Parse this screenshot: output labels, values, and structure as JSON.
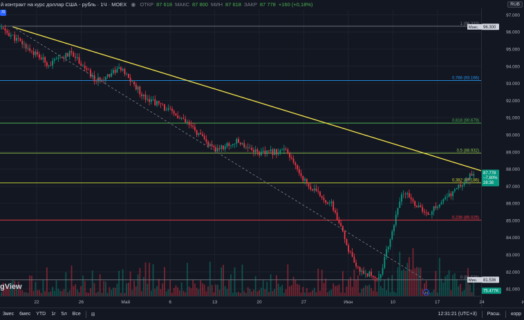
{
  "header": {
    "symbol": "й контракт на курс доллар США - рубль · 1Ч · MOEX",
    "open_label": "ОТКР",
    "open": "87 618",
    "high_label": "МАКС",
    "high": "87 800",
    "low_label": "МИН",
    "low": "87 618",
    "close_label": "ЗАКР",
    "close": "87 778",
    "change": "+160 (+0,18%)",
    "badge": "70",
    "currency": "RUB"
  },
  "watermark": "gView",
  "bottom_bar": {
    "ranges": [
      "3мес",
      "6мес",
      "YTD",
      "1г",
      "5л",
      "Все"
    ],
    "time": "12:31:21 (UTC+3)",
    "scale": "Расш.",
    "mode": "корр"
  },
  "chart_data": {
    "type": "candlestick",
    "y_axis": {
      "ticks": [
        "97.000",
        "96.000",
        "95.000",
        "94.000",
        "93.000",
        "92.000",
        "91.000",
        "90.000",
        "89.000",
        "88.000",
        "87.000",
        "86.000",
        "85.000",
        "84.000",
        "83.000",
        "82.000",
        "81.000"
      ],
      "range": [
        80.6,
        97.3
      ]
    },
    "x_axis": {
      "ticks": [
        "22",
        "26",
        "Май",
        "6",
        "13",
        "20",
        "27",
        "Июн",
        "10",
        "17",
        "24",
        "Июл"
      ]
    },
    "price_path": [
      96.2,
      95.2,
      94.1,
      94.8,
      93.1,
      93.9,
      92.3,
      91.5,
      90.5,
      89.1,
      89.6,
      88.9,
      89.1,
      87.0,
      85.9,
      82.2,
      81.6,
      86.7,
      85.3,
      86.5,
      87.78
    ],
    "fibonacci": [
      {
        "level": "1",
        "price": 96.333,
        "label": "1 (96.333)",
        "color": "#787b86"
      },
      {
        "level": "0.786",
        "price": 93.166,
        "label": "0,786 (93.166)",
        "color": "#2196f3"
      },
      {
        "level": "0.618",
        "price": 90.679,
        "label": "0,618 (90.679)",
        "color": "#4caf50"
      },
      {
        "level": "0.5",
        "price": 88.932,
        "label": "0,5 (88.932)",
        "color": "#8bc34a"
      },
      {
        "level": "0.382",
        "price": 87.186,
        "label": "0,382 (87.186)",
        "color": "#cddc39"
      },
      {
        "level": "0.236",
        "price": 85.025,
        "label": "0,236 (85.025)",
        "color": "#f23645"
      },
      {
        "level": "0",
        "price": 81.536,
        "label": "0 (81.536)",
        "color": "#787b86"
      }
    ],
    "price_labels": {
      "high": {
        "text": "Макс.",
        "value": "96.300"
      },
      "last": {
        "value": "87.778",
        "change": "−7,80%",
        "countdown": "28:38",
        "color": "#089981"
      },
      "low": {
        "text": "Мин.",
        "value": "81.536"
      },
      "volume": {
        "value": "75.477K",
        "color": "#089981"
      }
    },
    "trendline": {
      "color": "#f7e64c"
    },
    "dashed_line": {
      "color": "#787b86"
    },
    "flag": "24",
    "colors": {
      "up": "#089981",
      "down": "#f23645",
      "grid": "#1e222d",
      "background": "#131722"
    }
  }
}
